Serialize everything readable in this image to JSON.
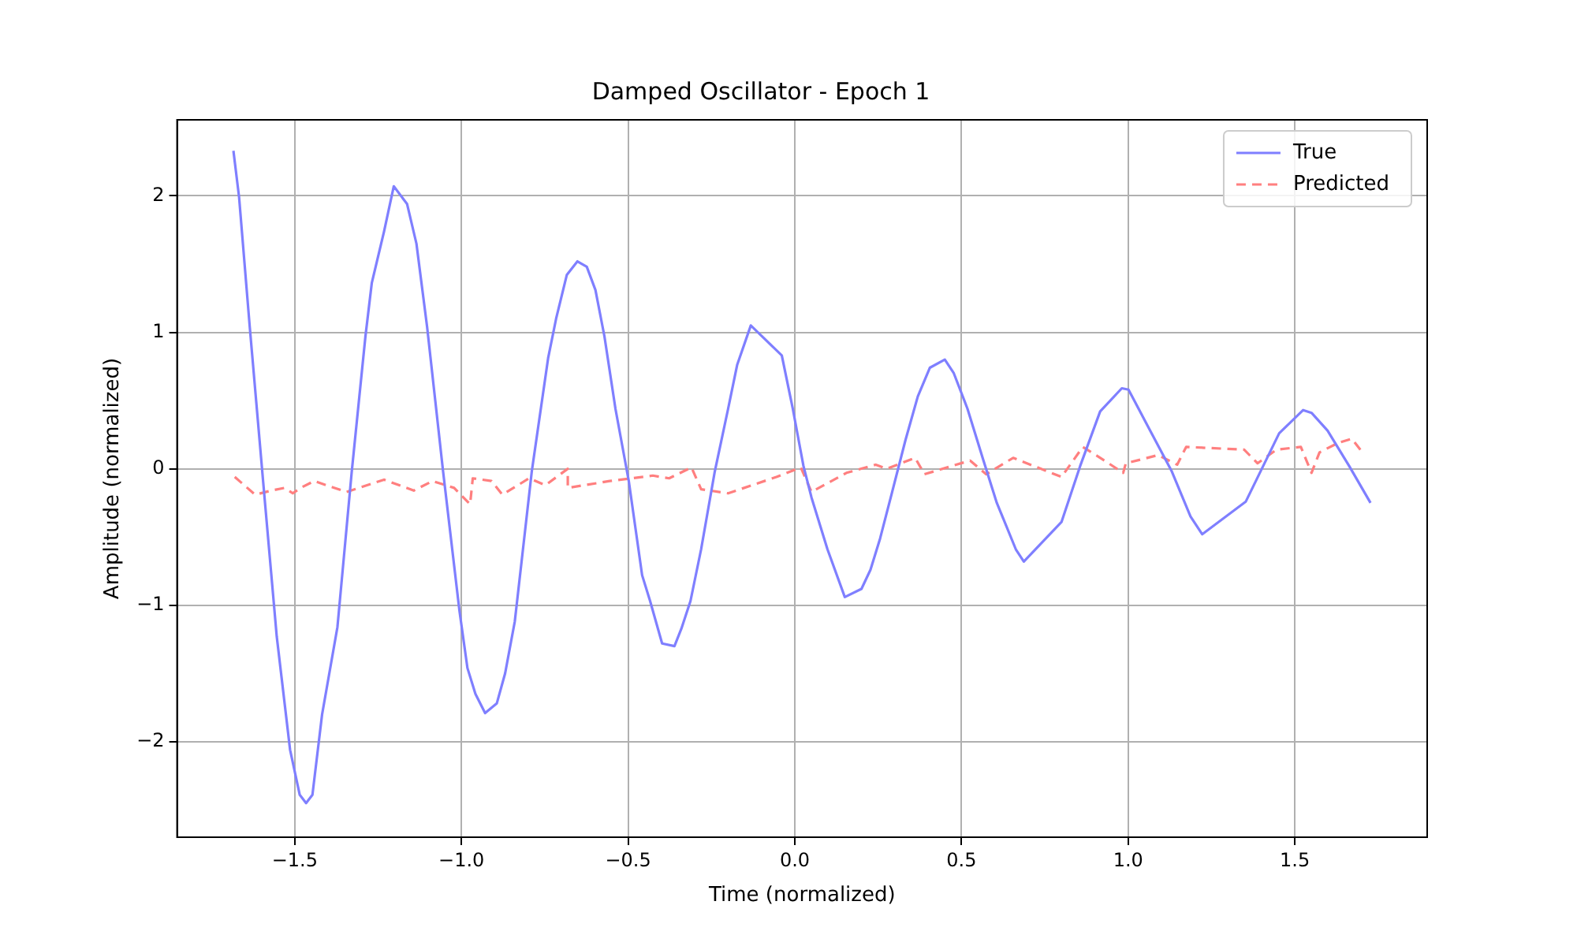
{
  "chart_data": {
    "type": "line",
    "title": "Damped Oscillator - Epoch 1",
    "xlabel": "Time (normalized)",
    "ylabel": "Amplitude (normalized)",
    "xlim": [
      -1.853,
      1.897
    ],
    "ylim": [
      -2.7,
      2.557
    ],
    "xticks": [
      {
        "value": -1.5,
        "label": "−1.5"
      },
      {
        "value": -1,
        "label": "−1.0"
      },
      {
        "value": -0.5,
        "label": "−0.5"
      },
      {
        "value": 0,
        "label": "0.0"
      },
      {
        "value": 0.5,
        "label": "0.5"
      },
      {
        "value": 1,
        "label": "1.0"
      },
      {
        "value": 1.5,
        "label": "1.5"
      }
    ],
    "yticks": [
      -2,
      -1,
      0,
      1,
      2
    ],
    "grid": true,
    "legend": "top right",
    "marker": "none",
    "series": [
      {
        "name": "True",
        "color": "#7f7fff",
        "line_style": "solid",
        "x": [
          -1.684,
          -1.667,
          -1.635,
          -1.595,
          -1.554,
          -1.514,
          -1.485,
          -1.466,
          -1.447,
          -1.418,
          -1.372,
          -1.329,
          -1.288,
          -1.269,
          -1.232,
          -1.203,
          -1.163,
          -1.135,
          -1.103,
          -1.055,
          -1.006,
          -0.982,
          -0.958,
          -0.929,
          -0.894,
          -0.869,
          -0.84,
          -0.789,
          -0.74,
          -0.716,
          -0.684,
          -0.652,
          -0.624,
          -0.598,
          -0.571,
          -0.538,
          -0.498,
          -0.458,
          -0.434,
          -0.398,
          -0.361,
          -0.34,
          -0.313,
          -0.281,
          -0.24,
          -0.2,
          -0.173,
          -0.132,
          -0.039,
          -0.006,
          0.026,
          0.05,
          0.098,
          0.15,
          0.2,
          0.227,
          0.256,
          0.292,
          0.332,
          0.369,
          0.405,
          0.45,
          0.477,
          0.518,
          0.566,
          0.606,
          0.663,
          0.687,
          0.8,
          0.856,
          0.916,
          0.981,
          1.001,
          1.066,
          1.131,
          1.187,
          1.222,
          1.353,
          1.405,
          1.453,
          1.525,
          1.55,
          1.598,
          1.663,
          1.727
        ],
        "values": [
          2.33,
          1.99,
          1.04,
          -0.09,
          -1.23,
          -2.06,
          -2.39,
          -2.45,
          -2.39,
          -1.8,
          -1.16,
          -0.02,
          0.97,
          1.36,
          1.74,
          2.07,
          1.94,
          1.65,
          1.04,
          -0.02,
          -1.04,
          -1.46,
          -1.65,
          -1.79,
          -1.72,
          -1.5,
          -1.12,
          -0.02,
          0.81,
          1.1,
          1.42,
          1.52,
          1.48,
          1.31,
          0.97,
          0.44,
          -0.09,
          -0.78,
          -0.97,
          -1.28,
          -1.3,
          -1.17,
          -0.97,
          -0.59,
          -0.02,
          0.44,
          0.76,
          1.05,
          0.83,
          0.44,
          0.02,
          -0.21,
          -0.59,
          -0.94,
          -0.88,
          -0.74,
          -0.51,
          -0.17,
          0.21,
          0.53,
          0.74,
          0.8,
          0.7,
          0.44,
          0.06,
          -0.25,
          -0.59,
          -0.68,
          -0.39,
          0.02,
          0.42,
          0.59,
          0.58,
          0.28,
          -0.02,
          -0.35,
          -0.48,
          -0.24,
          0.02,
          0.26,
          0.43,
          0.41,
          0.28,
          0.02,
          -0.25
        ]
      },
      {
        "name": "Predicted",
        "color": "#ff7f7f",
        "line_style": "dashed",
        "x": [
          -1.68,
          -1.619,
          -1.571,
          -1.53,
          -1.506,
          -1.482,
          -1.442,
          -1.345,
          -1.232,
          -1.143,
          -1.087,
          -1.022,
          -0.974,
          -0.966,
          -0.91,
          -0.877,
          -0.797,
          -0.748,
          -0.681,
          -0.681,
          -0.555,
          -0.426,
          -0.377,
          -0.31,
          -0.281,
          -0.2,
          -0.055,
          0.018,
          0.05,
          0.155,
          0.243,
          0.276,
          0.361,
          0.389,
          0.526,
          0.574,
          0.655,
          0.8,
          0.864,
          0.929,
          0.985,
          0.993,
          1.09,
          1.147,
          1.174,
          1.348,
          1.388,
          1.445,
          1.518,
          1.55,
          1.574,
          1.63,
          1.671,
          1.703
        ],
        "values": [
          -0.06,
          -0.19,
          -0.16,
          -0.14,
          -0.18,
          -0.14,
          -0.09,
          -0.17,
          -0.08,
          -0.16,
          -0.09,
          -0.14,
          -0.26,
          -0.07,
          -0.09,
          -0.19,
          -0.07,
          -0.12,
          0.0,
          -0.14,
          -0.09,
          -0.05,
          -0.07,
          0.01,
          -0.15,
          -0.18,
          -0.06,
          0.01,
          -0.17,
          -0.03,
          0.03,
          0.0,
          0.08,
          -0.04,
          0.06,
          -0.04,
          0.08,
          -0.06,
          0.16,
          0.06,
          -0.03,
          0.04,
          0.1,
          0.03,
          0.16,
          0.14,
          0.04,
          0.14,
          0.16,
          -0.03,
          0.12,
          0.19,
          0.22,
          0.12
        ]
      }
    ]
  }
}
